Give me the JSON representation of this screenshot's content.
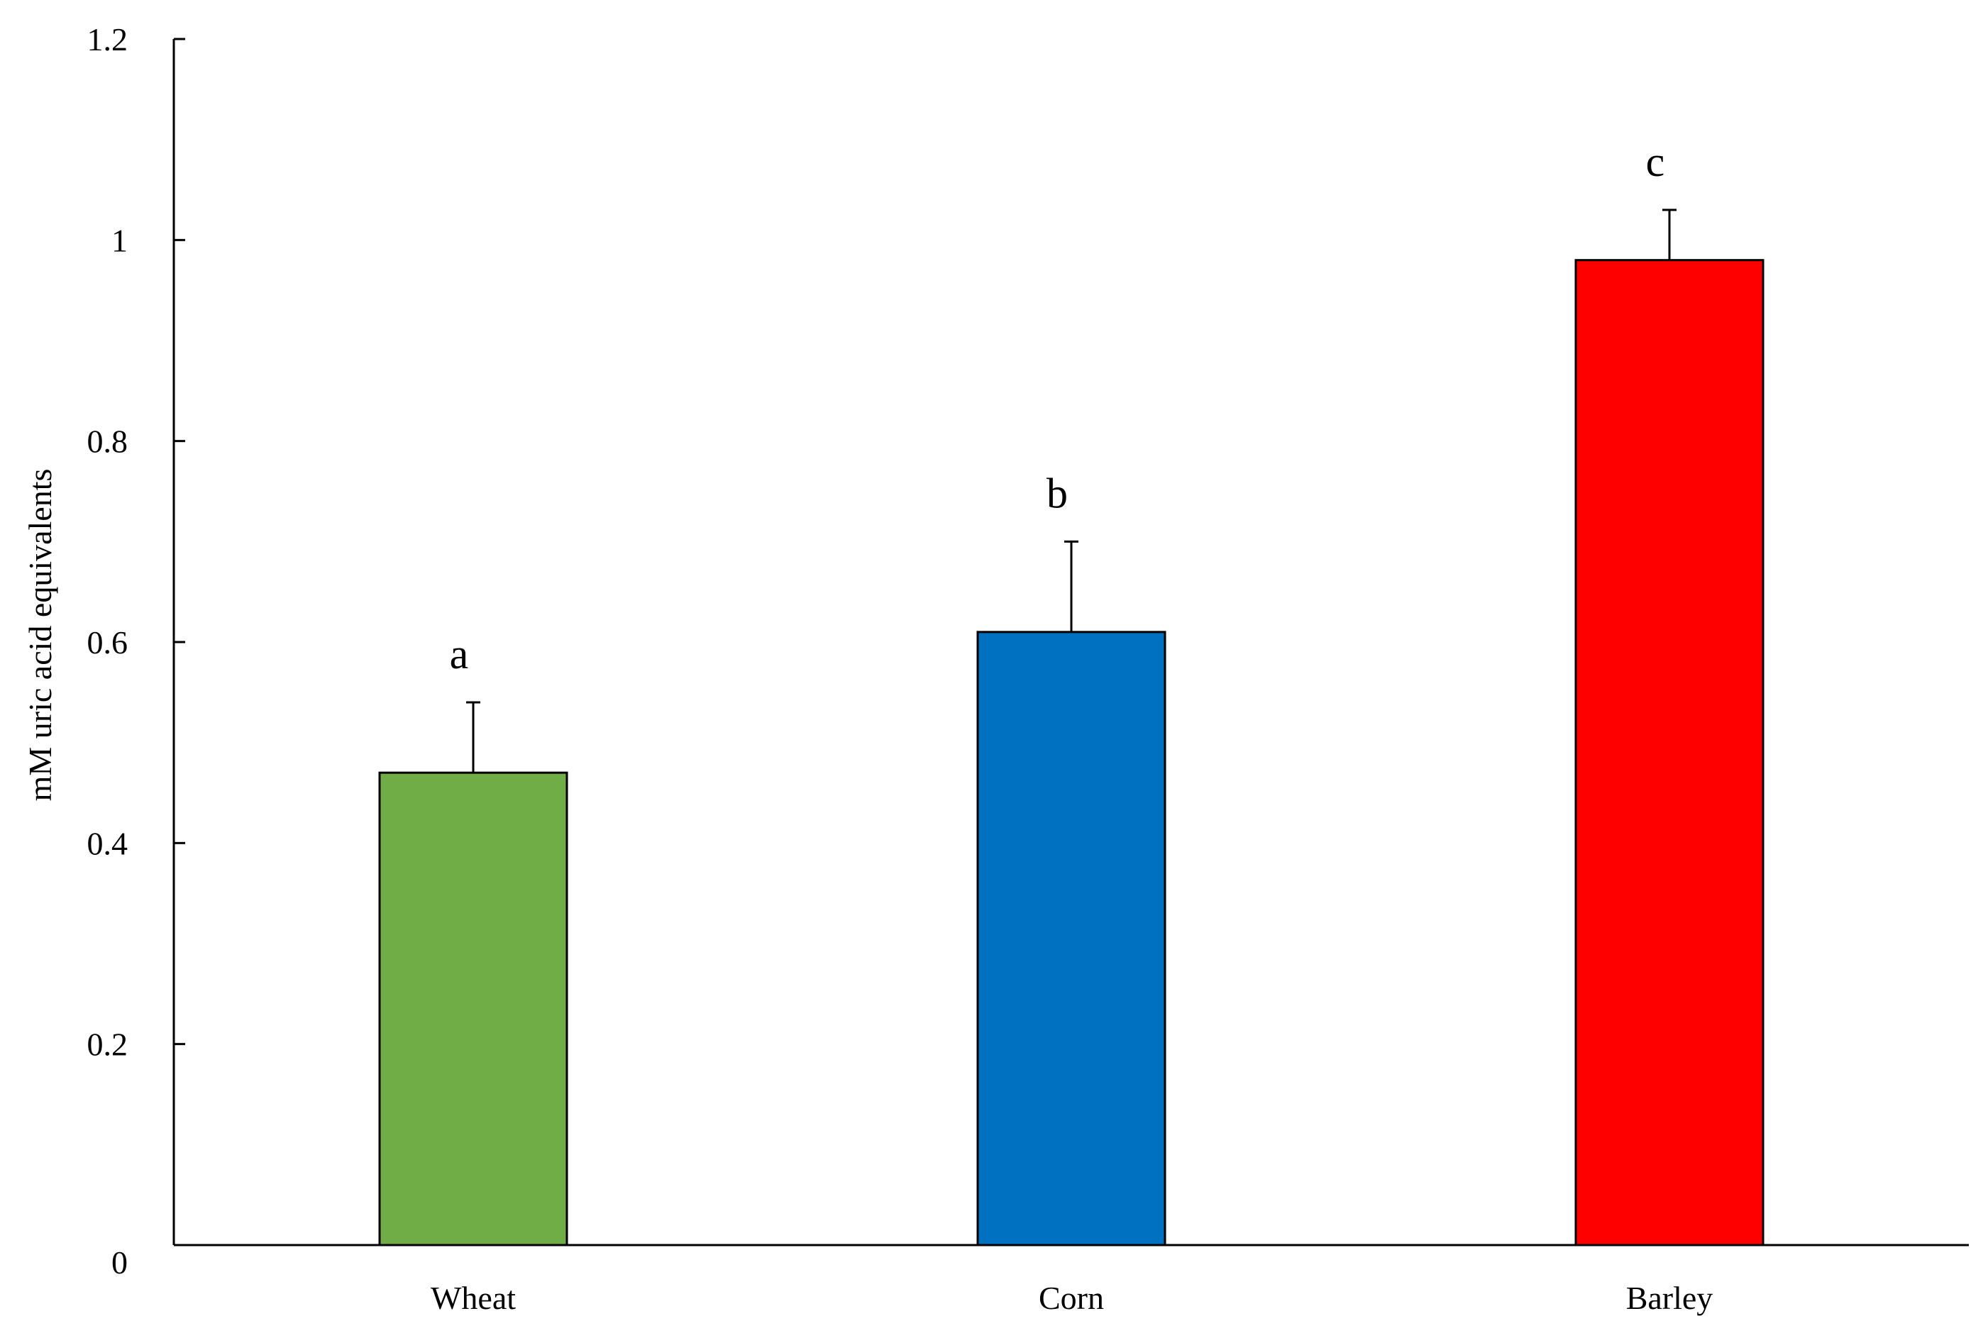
{
  "chart_data": {
    "type": "bar",
    "title": "",
    "xlabel": "",
    "ylabel": "mM uric acid equivalents",
    "ylim": [
      0,
      1.2
    ],
    "yticks": [
      "0",
      "0.2",
      "0.4",
      "0.6",
      "0.8",
      "1",
      "1.2"
    ],
    "categories": [
      "Wheat",
      "Corn",
      "Barley"
    ],
    "values": [
      0.47,
      0.61,
      0.98
    ],
    "errors": [
      0.07,
      0.09,
      0.05
    ],
    "significance_labels": [
      "a",
      "b",
      "c"
    ],
    "colors": [
      "#70AD47",
      "#0070C0",
      "#FF0000"
    ],
    "grid": false,
    "legend": "none"
  }
}
